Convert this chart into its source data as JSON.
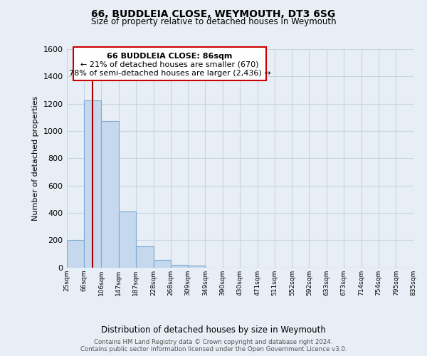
{
  "title": "66, BUDDLEIA CLOSE, WEYMOUTH, DT3 6SG",
  "subtitle": "Size of property relative to detached houses in Weymouth",
  "xlabel": "Distribution of detached houses by size in Weymouth",
  "ylabel": "Number of detached properties",
  "bin_edges": [
    25,
    66,
    106,
    147,
    187,
    228,
    268,
    309,
    349,
    390,
    430,
    471,
    511,
    552,
    592,
    633,
    673,
    714,
    754,
    795,
    835
  ],
  "bin_labels": [
    "25sqm",
    "66sqm",
    "106sqm",
    "147sqm",
    "187sqm",
    "228sqm",
    "268sqm",
    "309sqm",
    "349sqm",
    "390sqm",
    "430sqm",
    "471sqm",
    "511sqm",
    "552sqm",
    "592sqm",
    "633sqm",
    "673sqm",
    "714sqm",
    "754sqm",
    "795sqm",
    "835sqm"
  ],
  "counts": [
    205,
    1225,
    1075,
    410,
    155,
    55,
    22,
    15,
    0,
    0,
    0,
    0,
    0,
    0,
    0,
    0,
    0,
    0,
    0,
    0
  ],
  "bar_color": "#c5d8ee",
  "bar_edge_color": "#7aaacf",
  "property_size": 86,
  "property_line_color": "#aa0000",
  "annotation_text_line1": "66 BUDDLEIA CLOSE: 86sqm",
  "annotation_text_line2": "← 21% of detached houses are smaller (670)",
  "annotation_text_line3": "78% of semi-detached houses are larger (2,436) →",
  "annotation_box_color": "#ffffff",
  "annotation_box_edge": "#cc0000",
  "ylim": [
    0,
    1600
  ],
  "yticks": [
    0,
    200,
    400,
    600,
    800,
    1000,
    1200,
    1400,
    1600
  ],
  "footer_line1": "Contains HM Land Registry data © Crown copyright and database right 2024.",
  "footer_line2": "Contains public sector information licensed under the Open Government Licence v3.0.",
  "background_color": "#e8eef5",
  "plot_bg_color": "#e8eef5",
  "grid_color": "#c8d4e0"
}
